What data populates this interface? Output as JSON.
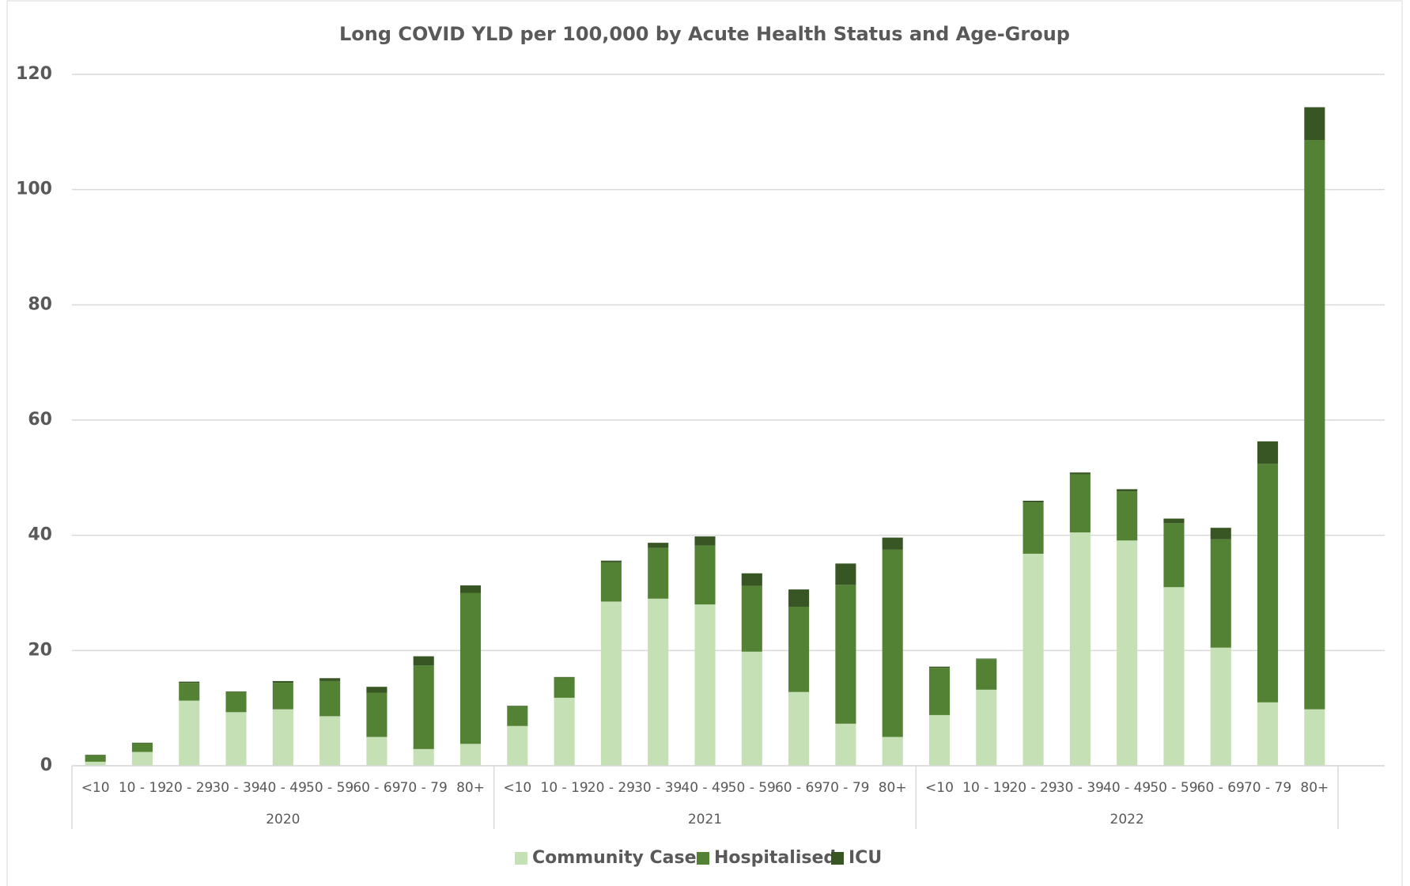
{
  "chart_data": {
    "type": "stacked_bar",
    "title": "Long COVID YLD per 100,000 by Acute Health Status and Age-Group",
    "categories": [
      "<10",
      "10 - 19",
      "20 - 29",
      "30 - 39",
      "40 - 49",
      "50 - 59",
      "60 - 69",
      "70 - 79",
      "80+",
      "<10",
      "10 - 19",
      "20 - 29",
      "30 - 39",
      "40 - 49",
      "50 - 59",
      "60 - 69",
      "70 - 79",
      "80+",
      "<10",
      "10 - 19",
      "20 - 29",
      "30 - 39",
      "40 - 49",
      "50 - 59",
      "60 - 69",
      "70 - 79",
      "80+"
    ],
    "category_groups": [
      "2020",
      "2021",
      "2022"
    ],
    "series": [
      {
        "name": "Community Case",
        "color": "#c5e0b4",
        "values": [
          0.7,
          2.4,
          11.3,
          9.3,
          9.8,
          8.6,
          5.0,
          2.9,
          3.8,
          6.9,
          11.8,
          28.5,
          29.0,
          28.0,
          19.8,
          12.8,
          7.3,
          5.0,
          8.8,
          13.2,
          36.8,
          40.5,
          39.1,
          31.0,
          20.5,
          11.0,
          9.8
        ]
      },
      {
        "name": "Hospitalised",
        "color": "#548235",
        "values": [
          1.1,
          1.5,
          3.1,
          3.5,
          4.6,
          6.1,
          7.7,
          14.5,
          26.2,
          3.4,
          3.5,
          6.8,
          8.8,
          10.2,
          11.4,
          14.8,
          24.1,
          32.5,
          8.2,
          5.3,
          8.9,
          10.1,
          8.5,
          11.1,
          18.8,
          41.4,
          98.8
        ]
      },
      {
        "name": "ICU",
        "color": "#375623",
        "values": [
          0.1,
          0.1,
          0.2,
          0.1,
          0.3,
          0.5,
          1.0,
          1.6,
          1.3,
          0.1,
          0.1,
          0.3,
          0.9,
          1.6,
          2.2,
          3.0,
          3.7,
          2.1,
          0.2,
          0.1,
          0.3,
          0.3,
          0.4,
          0.8,
          2.0,
          3.9,
          5.7
        ]
      }
    ],
    "ylim": [
      0,
      120
    ],
    "yticks": [
      0,
      20,
      40,
      60,
      80,
      100,
      120
    ],
    "grid": true,
    "legend": "bottom"
  }
}
